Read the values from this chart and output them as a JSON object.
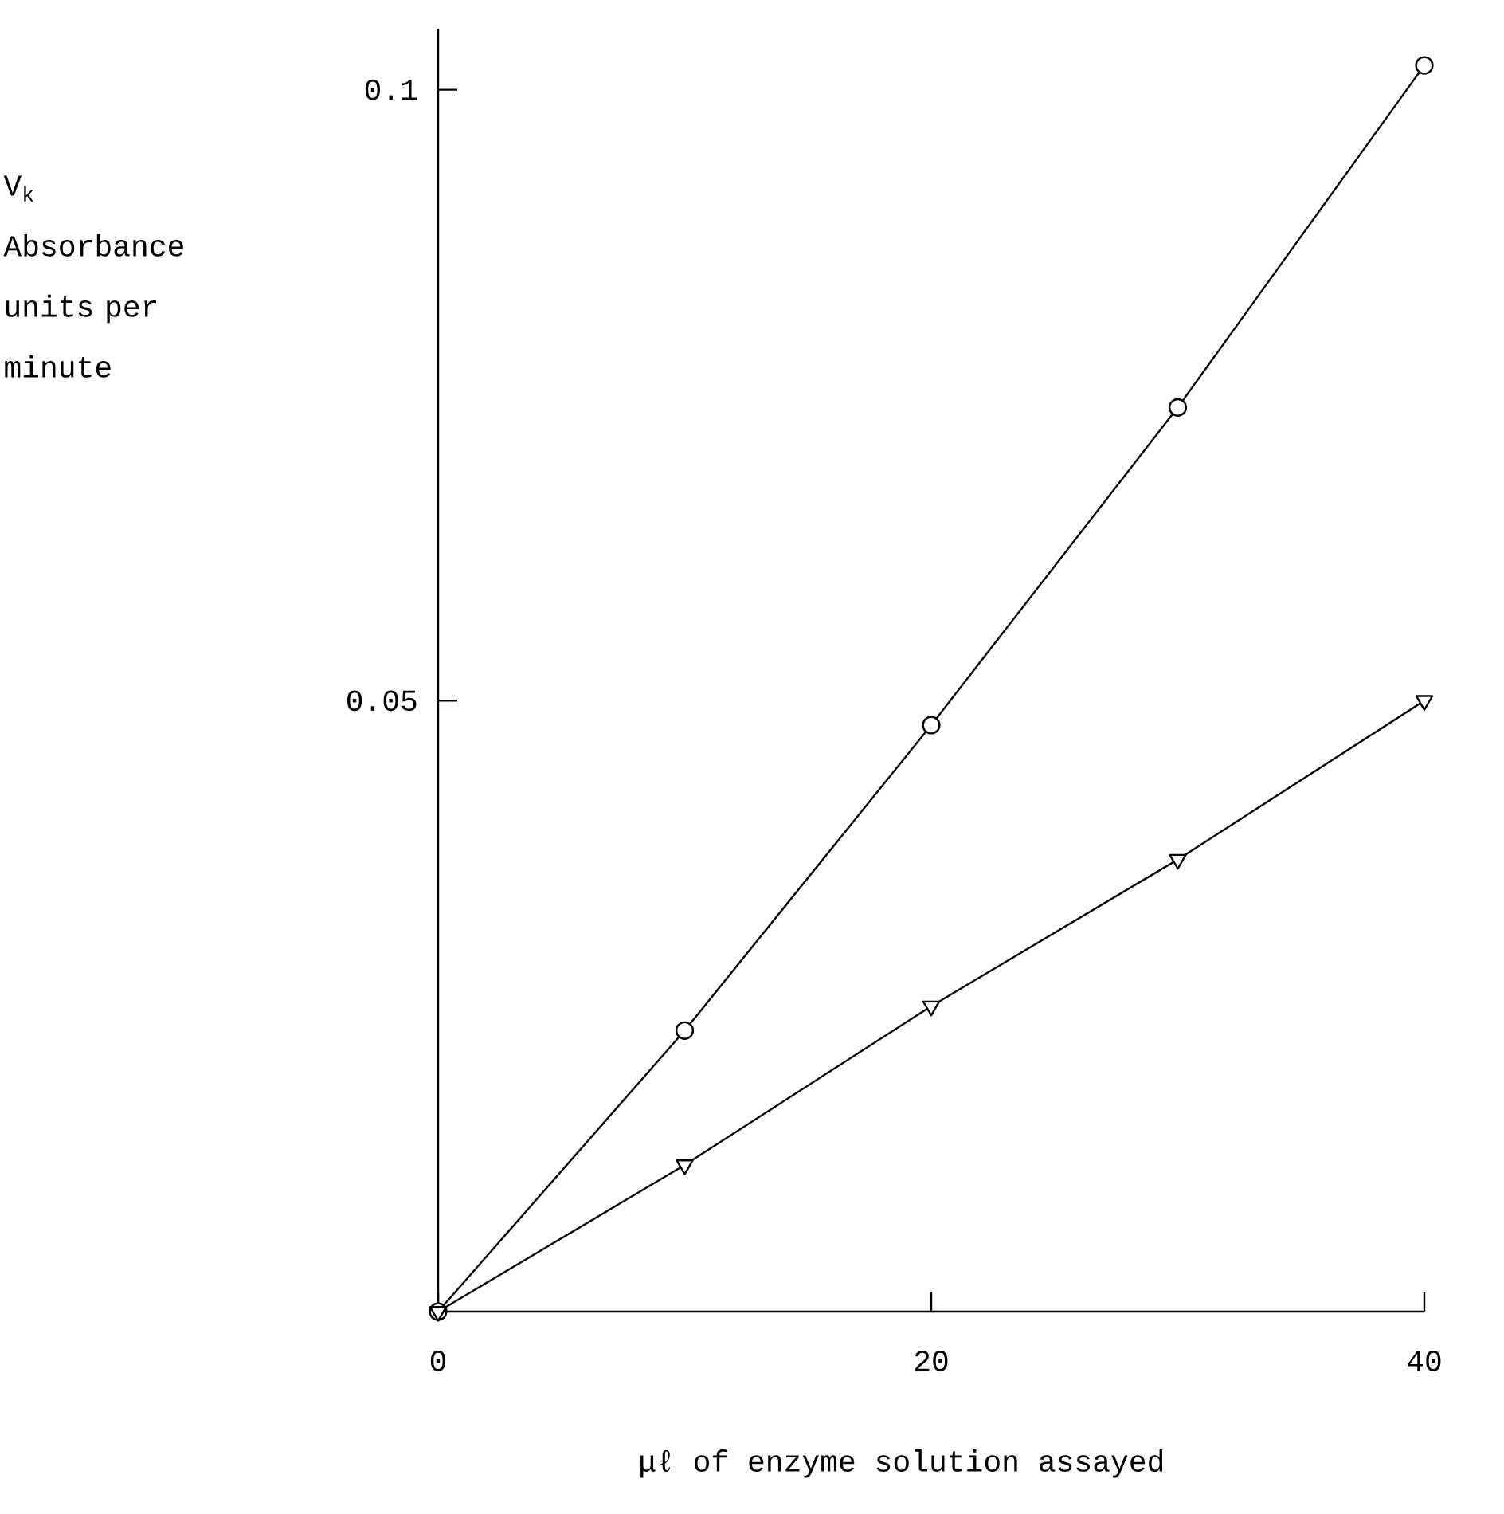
{
  "chart_data": {
    "type": "line",
    "xlabel": "μℓ of enzyme solution assayed",
    "ylabel": "V$_{k}$ Absorbance units per minute",
    "x": [
      0,
      10,
      20,
      30,
      40
    ],
    "series": [
      {
        "color": "#000000",
        "marker": "circle",
        "values": [
          0,
          0.023,
          0.048,
          0.074,
          0.102
        ]
      },
      {
        "color": "#000000",
        "marker": "triangle",
        "values": [
          0,
          0.012,
          0.025,
          0.037,
          0.05
        ]
      }
    ],
    "xlim": [
      0,
      40
    ],
    "ylim": [
      0,
      0.105
    ],
    "xticks": [
      0,
      20,
      40
    ],
    "yticks": [
      0.05,
      0.1
    ]
  }
}
